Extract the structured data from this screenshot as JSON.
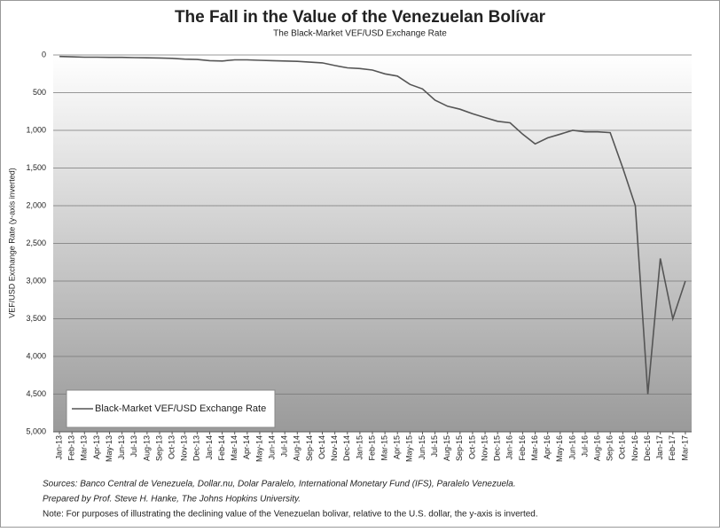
{
  "chart_data": {
    "type": "line",
    "title": "The Fall in the Value of the Venezuelan Bolívar",
    "subtitle": "The Black-Market VEF/USD Exchange Rate",
    "y_label": "VEF/USD Exchange Rate (y-axis inverted)",
    "y_inverted": true,
    "grid": true,
    "legend": "bottom-left",
    "categories": [
      "Jan-13",
      "Feb-13",
      "Mar-13",
      "Apr-13",
      "May-13",
      "Jun-13",
      "Jul-13",
      "Aug-13",
      "Sep-13",
      "Oct-13",
      "Nov-13",
      "Dec-13",
      "Jan-14",
      "Feb-14",
      "Mar-14",
      "Apr-14",
      "May-14",
      "Jun-14",
      "Jul-14",
      "Aug-14",
      "Sep-14",
      "Oct-14",
      "Nov-14",
      "Dec-14",
      "Jan-15",
      "Feb-15",
      "Mar-15",
      "Apr-15",
      "May-15",
      "Jun-15",
      "Jul-15",
      "Aug-15",
      "Sep-15",
      "Oct-15",
      "Nov-15",
      "Dec-15",
      "Jan-16",
      "Feb-16",
      "Mar-16",
      "Apr-16",
      "May-16",
      "Jun-16",
      "Jul-16",
      "Aug-16",
      "Sep-16",
      "Oct-16",
      "Nov-16",
      "Dec-16",
      "Jan-17",
      "Feb-17",
      "Mar-17"
    ],
    "series": [
      {
        "name": "Black-Market VEF/USD Exchange Rate",
        "color": "#555555",
        "values": [
          20,
          25,
          30,
          30,
          32,
          32,
          35,
          38,
          40,
          45,
          55,
          60,
          75,
          80,
          65,
          65,
          70,
          75,
          80,
          85,
          95,
          105,
          140,
          170,
          180,
          200,
          250,
          280,
          390,
          450,
          600,
          680,
          720,
          780,
          830,
          880,
          900,
          1050,
          1180,
          1100,
          1050,
          1000,
          1020,
          1020,
          1030,
          1500,
          2000,
          4500,
          2700,
          3500,
          3000
        ]
      }
    ],
    "ylim": [
      0,
      5000
    ],
    "yticks": [
      0,
      500,
      {
        "value": 1000,
        "label": "1,000"
      },
      {
        "value": 1500,
        "label": "1,500"
      },
      {
        "value": 2000,
        "label": "2,000"
      },
      {
        "value": 2500,
        "label": "2,500"
      },
      {
        "value": 3000,
        "label": "3,000"
      },
      {
        "value": 3500,
        "label": "3,500"
      },
      {
        "value": 4000,
        "label": "4,000"
      },
      {
        "value": 4500,
        "label": "4,500"
      },
      {
        "value": 5000,
        "label": "5,000"
      }
    ],
    "notes": [
      "Sources: Banco Central de Venezuela, Dollar.nu, Dolar Paralelo, International Monetary Fund (IFS), Paralelo Venezuela.",
      "Prepared by Prof. Steve H. Hanke, The Johns Hopkins University.",
      "Note: For purposes of illustrating the declining value of the Venezuelan bolivar, relative to the U.S. dollar, the y-axis is inverted."
    ]
  }
}
